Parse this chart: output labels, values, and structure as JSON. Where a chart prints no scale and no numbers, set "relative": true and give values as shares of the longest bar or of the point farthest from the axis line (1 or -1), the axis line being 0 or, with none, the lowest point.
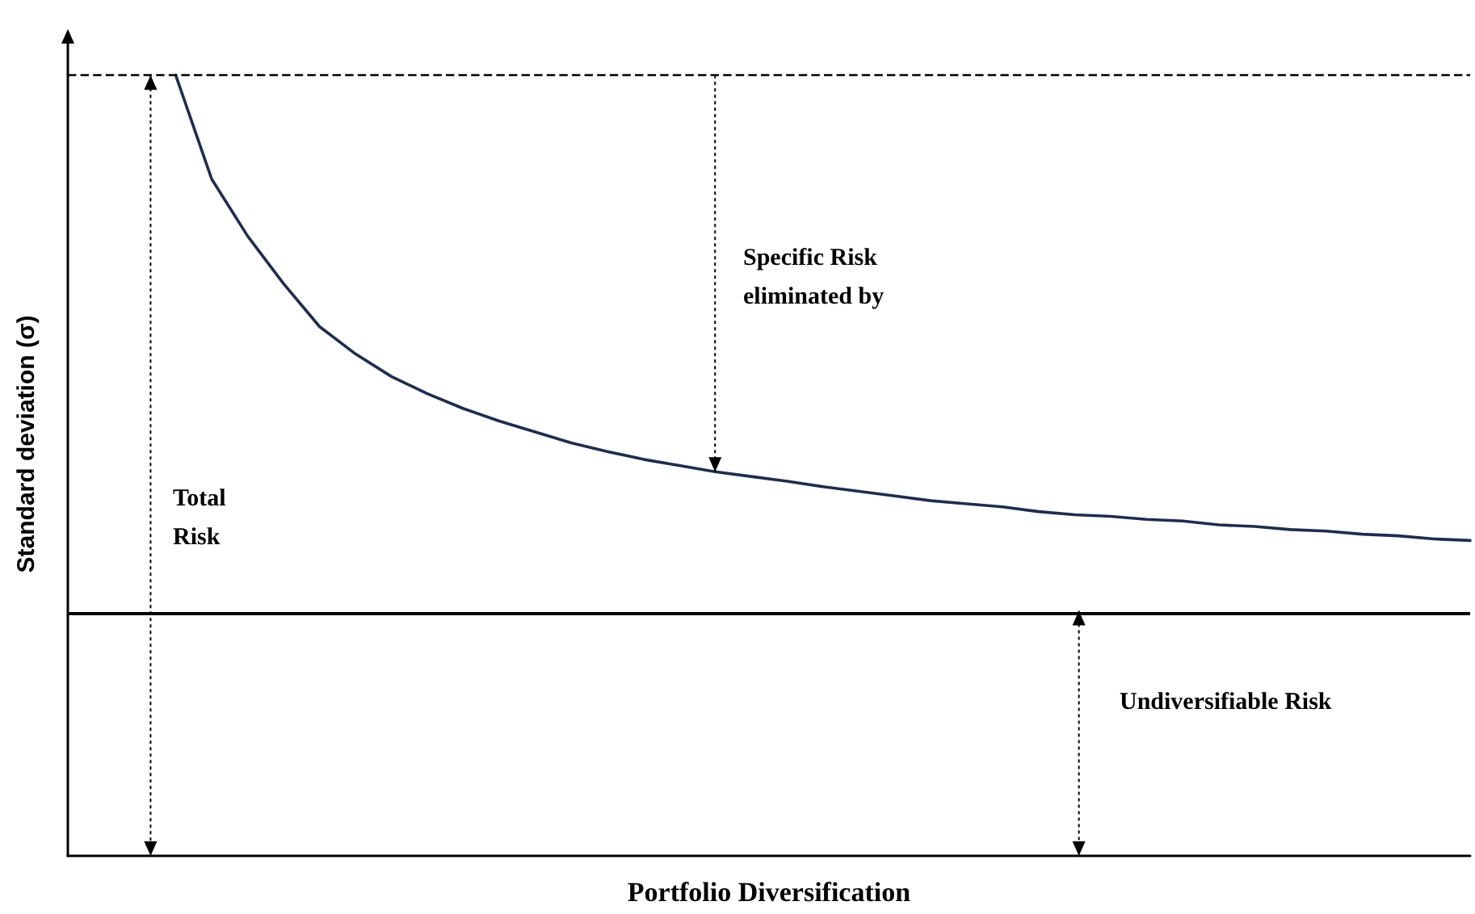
{
  "chart_data": {
    "type": "line",
    "relative": true,
    "xlabel": "Portfolio Diversification",
    "ylabel": "Standard deviation (σ)",
    "categories": [
      null,
      null,
      null,
      null,
      null,
      null,
      null,
      null,
      null,
      null,
      null,
      null,
      null,
      null,
      null,
      null,
      null,
      null,
      null,
      null,
      null,
      null,
      null,
      null,
      null,
      null,
      null,
      null,
      null,
      null,
      null,
      null,
      null,
      null,
      null,
      null,
      null,
      null,
      null,
      null
    ],
    "series": [
      {
        "color": "#1f2d4e",
        "values": [
          null,
          null,
          null,
          1.0,
          0.867,
          0.794,
          0.733,
          0.678,
          0.643,
          0.614,
          0.592,
          0.573,
          0.557,
          0.543,
          0.529,
          0.518,
          0.508,
          0.5,
          0.492,
          0.486,
          0.48,
          0.473,
          0.467,
          0.461,
          0.455,
          0.451,
          0.447,
          0.441,
          0.437,
          0.435,
          0.431,
          0.429,
          0.424,
          0.422,
          0.418,
          0.416,
          0.412,
          0.41,
          0.406,
          0.404
        ]
      }
    ],
    "ref_lines": [
      {
        "axis": "y",
        "value": 1,
        "color": "#000000",
        "line_style": "dashed"
      },
      {
        "axis": "y",
        "value": 0.314,
        "color": "#000000",
        "line_style": "solid"
      }
    ],
    "annotations": [
      "Specific Risk eliminated by",
      "Total Risk",
      "Undiversifiable Risk"
    ],
    "marker": "none",
    "line_style": "solid",
    "grid": false
  }
}
